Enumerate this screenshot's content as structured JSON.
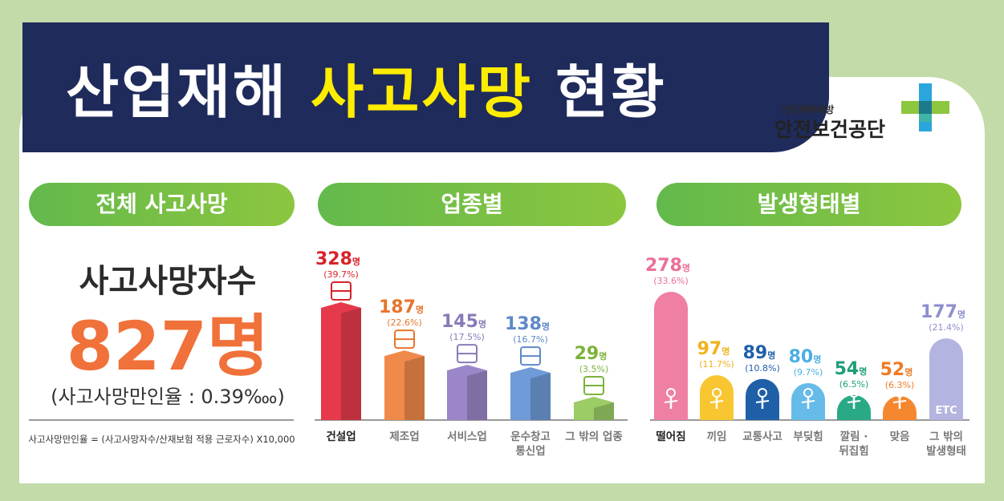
{
  "header": {
    "title_part1": "산업재해",
    "title_highlight": "사고사망",
    "title_part2": "현황"
  },
  "logo": {
    "subtitle": "산업재해예방",
    "name": "안전보건공단"
  },
  "sections": {
    "total_label": "전체 사고사망",
    "industry_label": "업종별",
    "type_label": "발생형태별"
  },
  "total": {
    "heading": "사고사망자수",
    "count": "827명",
    "rate": "(사고사망만인율 : 0.39‱)",
    "formula": "사고사망만인율 = (사고사망자수/산재보험 적용 근로자수) X10,000"
  },
  "colors": {
    "background": "#c2dba9",
    "banner": "#1f2b5b",
    "highlight": "#ffed00",
    "pill_green": "#6dbb47",
    "total_orange": "#f0713a"
  },
  "chart_data": [
    {
      "type": "bar",
      "title": "업종별",
      "unit": "명",
      "categories": [
        "건설업",
        "제조업",
        "서비스업",
        "운수창고 통신업",
        "그 밖의 업종"
      ],
      "category_lines": [
        [
          "건설업"
        ],
        [
          "제조업"
        ],
        [
          "서비스업"
        ],
        [
          "운수창고",
          "통신업"
        ],
        [
          "그 밖의 업종"
        ]
      ],
      "values": [
        328,
        187,
        145,
        138,
        29
      ],
      "percents": [
        "(39.7%)",
        "(22.6%)",
        "(17.5%)",
        "(16.7%)",
        "(3.5%)"
      ],
      "colors": [
        "#e63a4c",
        "#f08a4b",
        "#9a86c8",
        "#6f9bd8",
        "#9ccc65"
      ],
      "label_colors": [
        "#d8232a",
        "#e8742b",
        "#8a7ab8",
        "#5d89c6",
        "#7bb33a"
      ],
      "icons": [
        "crane-icon",
        "factory-icon",
        "worker-icon",
        "truck-icon",
        "etc-icon"
      ]
    },
    {
      "type": "bar",
      "title": "발생형태별",
      "unit": "명",
      "categories": [
        "떨어짐",
        "끼임",
        "교통사고",
        "부딪힘",
        "깔림 · 뒤집힘",
        "맞음",
        "그 밖의 발생형태"
      ],
      "category_lines": [
        [
          "떨어짐"
        ],
        [
          "끼임"
        ],
        [
          "교통사고"
        ],
        [
          "부딪힘"
        ],
        [
          "깔림 ·",
          "뒤집힘"
        ],
        [
          "맞음"
        ],
        [
          "그 밖의",
          "발생형태"
        ]
      ],
      "values": [
        278,
        97,
        89,
        80,
        54,
        52,
        177
      ],
      "percents": [
        "(33.6%)",
        "(11.7%)",
        "(10.8%)",
        "(9.7%)",
        "(6.5%)",
        "(6.3%)",
        "(21.4%)"
      ],
      "colors": [
        "#ef7fa3",
        "#f7c631",
        "#1f5fa8",
        "#66bbe8",
        "#2aa987",
        "#f5882f",
        "#b3b4df"
      ],
      "label_colors": [
        "#ec6f96",
        "#f0b21c",
        "#1f5fa8",
        "#4aaee2",
        "#1f9e7a",
        "#f07a22",
        "#8e8fcf"
      ],
      "bar_text": [
        "",
        "",
        "",
        "",
        "",
        "",
        "ETC"
      ],
      "icons": [
        "fall-icon",
        "caught-icon",
        "traffic-icon",
        "collision-icon",
        "crush-icon",
        "struck-icon",
        "etc-icon"
      ]
    }
  ]
}
